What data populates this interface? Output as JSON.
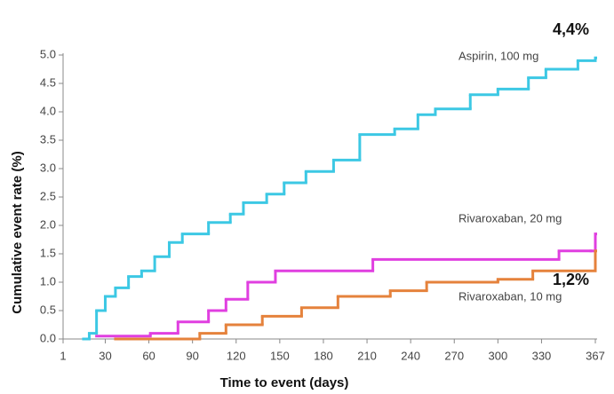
{
  "chart_data": {
    "type": "line",
    "step": true,
    "x_label": "Time to event (days)",
    "y_label": "Cumulative event rate (%)",
    "xlim": [
      1,
      367
    ],
    "xticks": [
      1,
      30,
      60,
      90,
      120,
      150,
      180,
      210,
      240,
      270,
      300,
      330,
      367
    ],
    "ylim": [
      0,
      5
    ],
    "yticks": [
      {
        "value": 0,
        "label": "0.0"
      },
      0.5,
      {
        "value": 1,
        "label": "1.0"
      },
      1.5,
      {
        "value": 2,
        "label": "2.0"
      },
      2.5,
      {
        "value": 3,
        "label": "3.0"
      },
      3.5,
      {
        "value": 4,
        "label": "4.0"
      },
      4.5,
      {
        "value": 5,
        "label": "5.0"
      }
    ],
    "annotations": [
      "4,4%",
      "1,2%"
    ],
    "series": [
      {
        "name": "Aspirin, 100 mg",
        "color": "#3cc8e4",
        "x": [
          15,
          19,
          24,
          30,
          37,
          46,
          55,
          64,
          74,
          83,
          101,
          116,
          125,
          141,
          153,
          168,
          187,
          205,
          229,
          245,
          257,
          281,
          300,
          321,
          333,
          355,
          367
        ],
        "values": [
          0,
          0.1,
          0.5,
          0.75,
          0.9,
          1.1,
          1.2,
          1.45,
          1.7,
          1.85,
          2.05,
          2.2,
          2.4,
          2.55,
          2.75,
          2.95,
          3.15,
          3.6,
          3.7,
          3.95,
          4.05,
          4.3,
          4.4,
          4.6,
          4.75,
          4.9,
          4.95
        ]
      },
      {
        "name": "Rivaroxaban, 20 mg",
        "color": "#e03fe0",
        "x": [
          24,
          61,
          80,
          101,
          113,
          128,
          147,
          214,
          342,
          364,
          367
        ],
        "values": [
          0.05,
          0.1,
          0.3,
          0.5,
          0.7,
          1.0,
          1.2,
          1.4,
          1.55,
          1.55,
          1.85
        ]
      },
      {
        "name": "Rivaroxaban, 10 mg",
        "color": "#e5823c",
        "x": [
          37,
          95,
          113,
          138,
          165,
          190,
          226,
          251,
          300,
          324,
          367
        ],
        "values": [
          0,
          0.1,
          0.25,
          0.4,
          0.55,
          0.75,
          0.85,
          1.0,
          1.05,
          1.2,
          1.55
        ]
      }
    ]
  }
}
